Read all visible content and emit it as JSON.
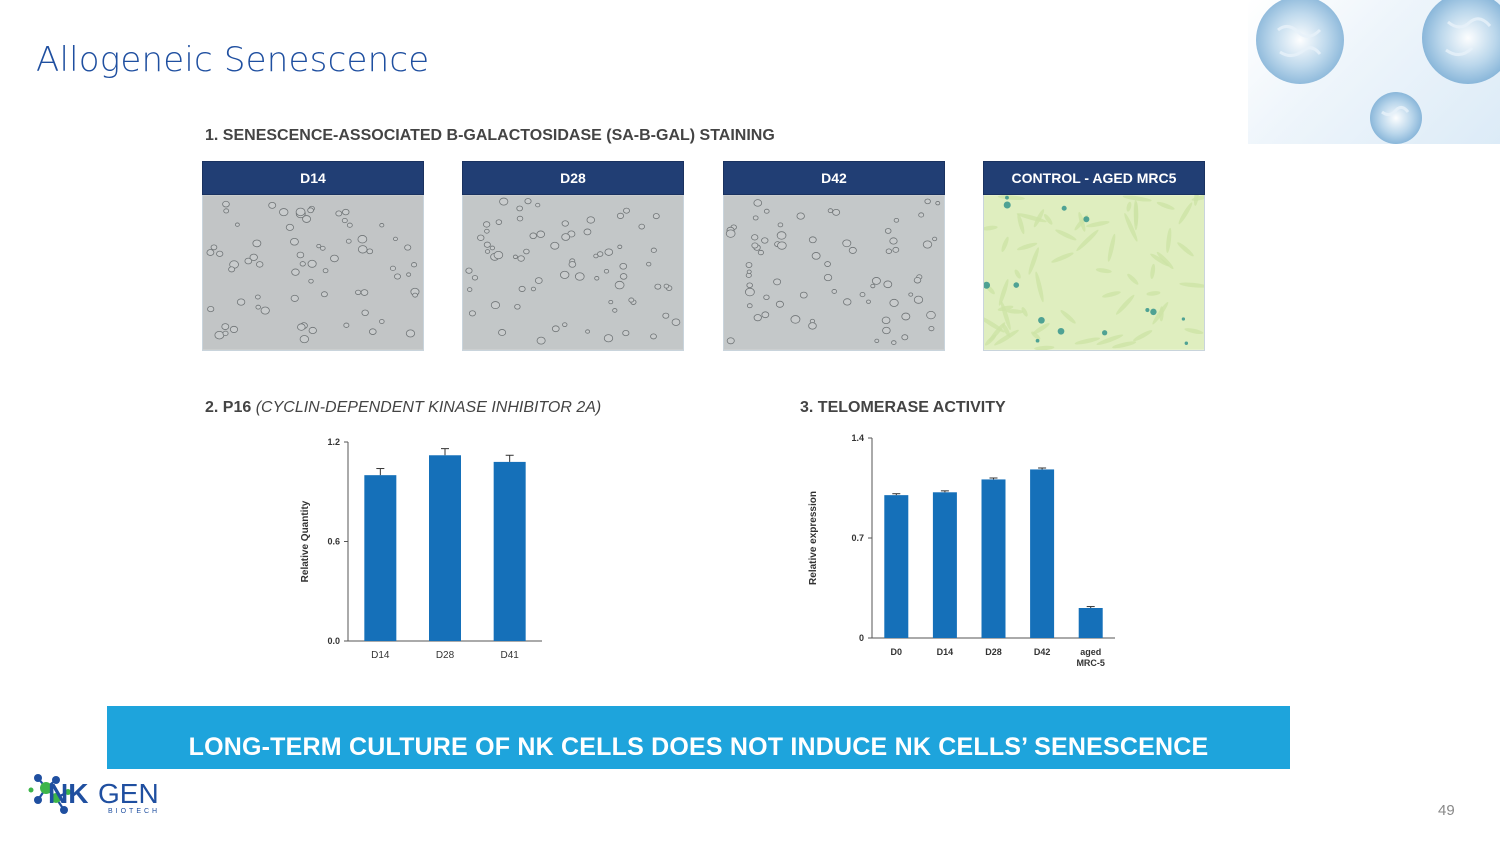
{
  "slide": {
    "title": "Allogeneic Senescence",
    "page_number": "49"
  },
  "section1": {
    "heading": "1. SENESCENCE-ASSOCIATED B-GALACTOSIDASE (SA-B-GAL) STAINING",
    "panels": [
      {
        "label": "D14",
        "image": "micrograph-gray-cells"
      },
      {
        "label": "D28",
        "image": "micrograph-gray-cells"
      },
      {
        "label": "D42",
        "image": "micrograph-gray-cells"
      },
      {
        "label": "CONTROL - AGED MRC5",
        "image": "micrograph-green-stained-cells"
      }
    ],
    "header_color": "#213e74",
    "micrograph_gray": "#b9bcbe",
    "micrograph_green": "#dfeebf",
    "stain_color": "#2a8f8a"
  },
  "section2": {
    "heading": "2. P16",
    "heading_italic": "(CYCLIN-DEPENDENT KINASE INHIBITOR 2A)"
  },
  "section3": {
    "heading": "3. TELOMERASE ACTIVITY"
  },
  "chart_data": [
    {
      "type": "bar",
      "title": "",
      "xlabel": "",
      "ylabel": "Relative Quantity",
      "categories": [
        "D14",
        "D28",
        "D41"
      ],
      "values": [
        1.0,
        1.12,
        1.08
      ],
      "errors": [
        0.04,
        0.04,
        0.04
      ],
      "ylim": [
        0,
        1.2
      ],
      "yticks": [
        0.0,
        0.6,
        1.2
      ],
      "ytick_labels": [
        "0.0",
        "0.6",
        "1.2"
      ],
      "grid": false,
      "bar_color": "#1570b9"
    },
    {
      "type": "bar",
      "title": "",
      "xlabel": "",
      "ylabel": "Relative expression",
      "categories": [
        "D0",
        "D14",
        "D28",
        "D42",
        "aged MRC-5"
      ],
      "values": [
        1.0,
        1.02,
        1.11,
        1.18,
        0.21
      ],
      "errors": [
        0.01,
        0.01,
        0.01,
        0.01,
        0.01
      ],
      "ylim": [
        0,
        1.4
      ],
      "yticks": [
        0,
        0.7,
        1.4
      ],
      "ytick_labels": [
        "0",
        "0.7",
        "1.4"
      ],
      "grid": false,
      "bar_color": "#1570b9"
    }
  ],
  "banner": {
    "text": "LONG-TERM CULTURE OF NK CELLS DOES NOT INDUCE NK CELLS’ SENESCENCE",
    "color": "#1ea4dc"
  },
  "logo": {
    "word_nk": "NK",
    "word_gen": "GEN",
    "subtitle": "BIOTECH",
    "icon": "molecule-network-icon",
    "colors": {
      "blue": "#1f4fa0",
      "green": "#3db54a"
    }
  }
}
